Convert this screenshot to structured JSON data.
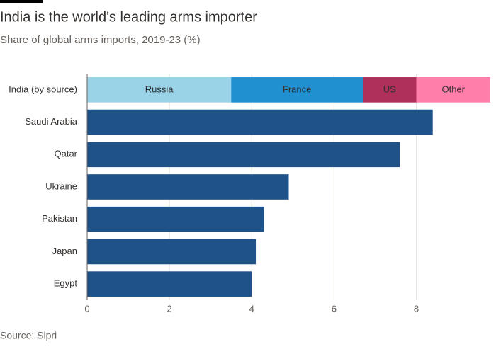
{
  "chart_data": {
    "type": "bar",
    "orientation": "horizontal",
    "title": "India is the world's leading arms importer",
    "subtitle": "Share of global arms imports, 2019-23 (%)",
    "source": "Source: Sipri",
    "categories": [
      "India (by source)",
      "Saudi Arabia",
      "Qatar",
      "Ukraine",
      "Pakistan",
      "Japan",
      "Egypt"
    ],
    "values": [
      null,
      8.4,
      7.6,
      4.9,
      4.3,
      4.1,
      4.0
    ],
    "color": "#1f5289",
    "series": [
      {
        "name": "Russia",
        "color": "#9ad3e8",
        "values": [
          3.5,
          null,
          null,
          null,
          null,
          null,
          null
        ]
      },
      {
        "name": "France",
        "color": "#2190d0",
        "values": [
          3.2,
          null,
          null,
          null,
          null,
          null,
          null
        ]
      },
      {
        "name": "US",
        "color": "#b0305c",
        "values": [
          1.3,
          null,
          null,
          null,
          null,
          null,
          null
        ]
      },
      {
        "name": "Other",
        "color": "#ff7faa",
        "values": [
          1.8,
          null,
          null,
          null,
          null,
          null,
          null
        ]
      }
    ],
    "xlim": [
      0,
      9.8
    ],
    "xticks": [
      0,
      2,
      4,
      6,
      8
    ],
    "grid": true
  }
}
